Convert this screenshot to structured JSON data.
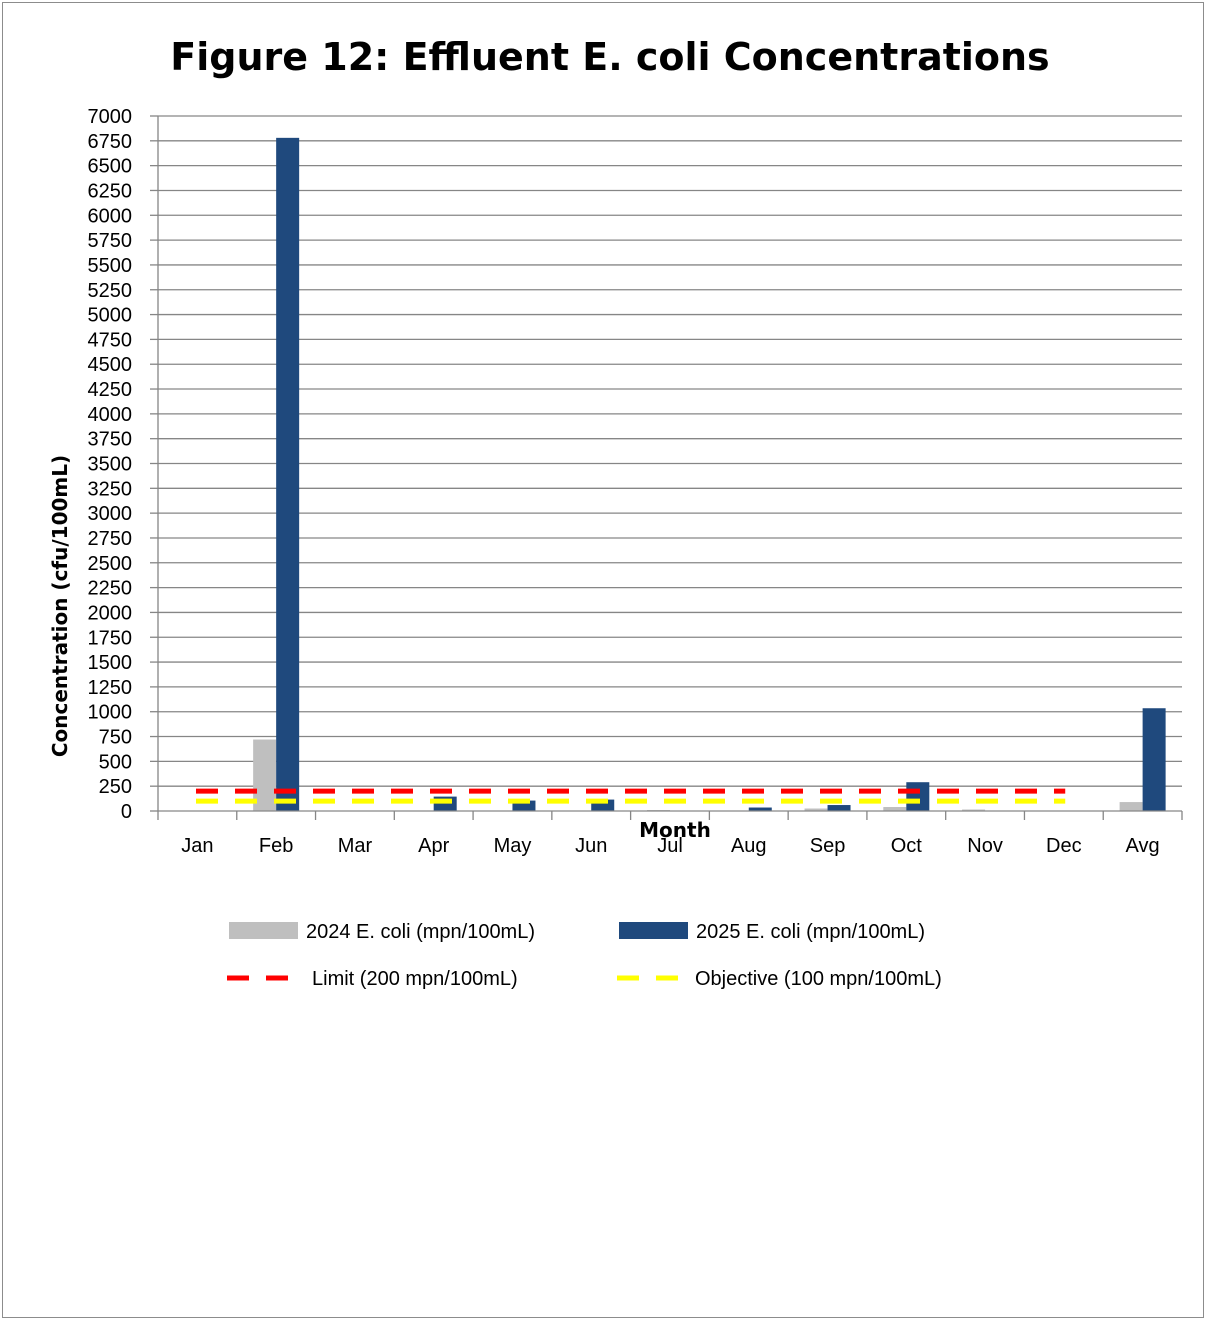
{
  "chart_data": {
    "type": "bar",
    "title": "Figure 12:  Effluent E. coli Concentrations",
    "xlabel": "Month",
    "ylabel": "Concentration (cfu/100mL)",
    "ylim": [
      0,
      7000
    ],
    "yticks": [
      0,
      250,
      500,
      750,
      1000,
      1250,
      1500,
      1750,
      2000,
      2250,
      2500,
      2750,
      3000,
      3250,
      3500,
      3750,
      4000,
      4250,
      4500,
      4750,
      5000,
      5250,
      5500,
      5750,
      6000,
      6250,
      6500,
      6750,
      7000
    ],
    "grid": true,
    "legend_position": "bottom",
    "categories": [
      "Jan",
      "Feb",
      "Mar",
      "Apr",
      "May",
      "Jun",
      "Jul",
      "Aug",
      "Sep",
      "Oct",
      "Nov",
      "Dec",
      "Avg"
    ],
    "series": [
      {
        "name": "2024  E. coli (mpn/100mL)",
        "color": "#bfbfbf",
        "values": [
          0,
          720,
          0,
          5,
          5,
          5,
          10,
          5,
          25,
          40,
          15,
          0,
          90
        ]
      },
      {
        "name": "2025  E. coli (mpn/100mL)",
        "color": "#1f497d",
        "values": [
          0,
          6780,
          0,
          145,
          105,
          115,
          0,
          35,
          60,
          290,
          0,
          0,
          1035
        ]
      }
    ],
    "lines": [
      {
        "name": "Limit (200 mpn/100mL)",
        "color": "#ff0000",
        "value": 200,
        "from": "Jan",
        "to": "Dec",
        "style": "dashed"
      },
      {
        "name": "Objective (100 mpn/100mL)",
        "color": "#ffff00",
        "value": 100,
        "from": "Jan",
        "to": "Dec",
        "style": "dashed"
      }
    ]
  }
}
